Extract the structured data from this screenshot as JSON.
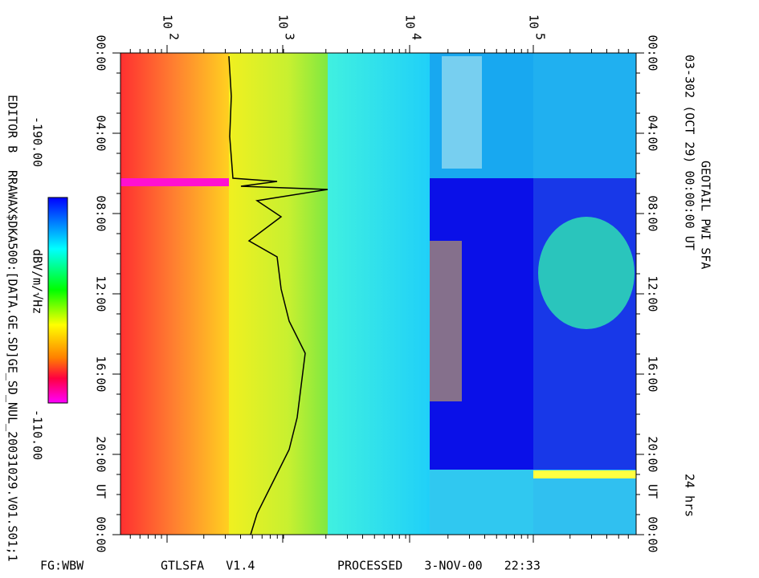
{
  "header": {
    "title": "GEOTAIL PWI SFA",
    "subtitle": "03-302 (OCT 29) 00:00:00 UT",
    "duration": "24 hrs"
  },
  "time_axis": {
    "labels": [
      "00:00",
      "04:00",
      "08:00",
      "12:00",
      "16:00",
      "20:00",
      "00:00"
    ],
    "zone": "UT"
  },
  "frequency_axis": {
    "labels": [
      {
        "base": "10",
        "exp": "2"
      },
      {
        "base": "10",
        "exp": "3"
      },
      {
        "base": "10",
        "exp": "4"
      },
      {
        "base": "10",
        "exp": "5"
      }
    ]
  },
  "colorbar": {
    "min_label": "-190.00",
    "max_label": "-110.00",
    "unit": "dBV/m/√Hz"
  },
  "side": {
    "editor": "EDITOR B",
    "file": "RRAWAX$DKA500:[DATA.GE.SD]GE_SD_NUL_20031029.V01.S01;1"
  },
  "footer": {
    "mode": "FG:WBW",
    "program": "GTLSFA   V1.4",
    "processed": "PROCESSED   3-NOV-00   22:33"
  }
}
